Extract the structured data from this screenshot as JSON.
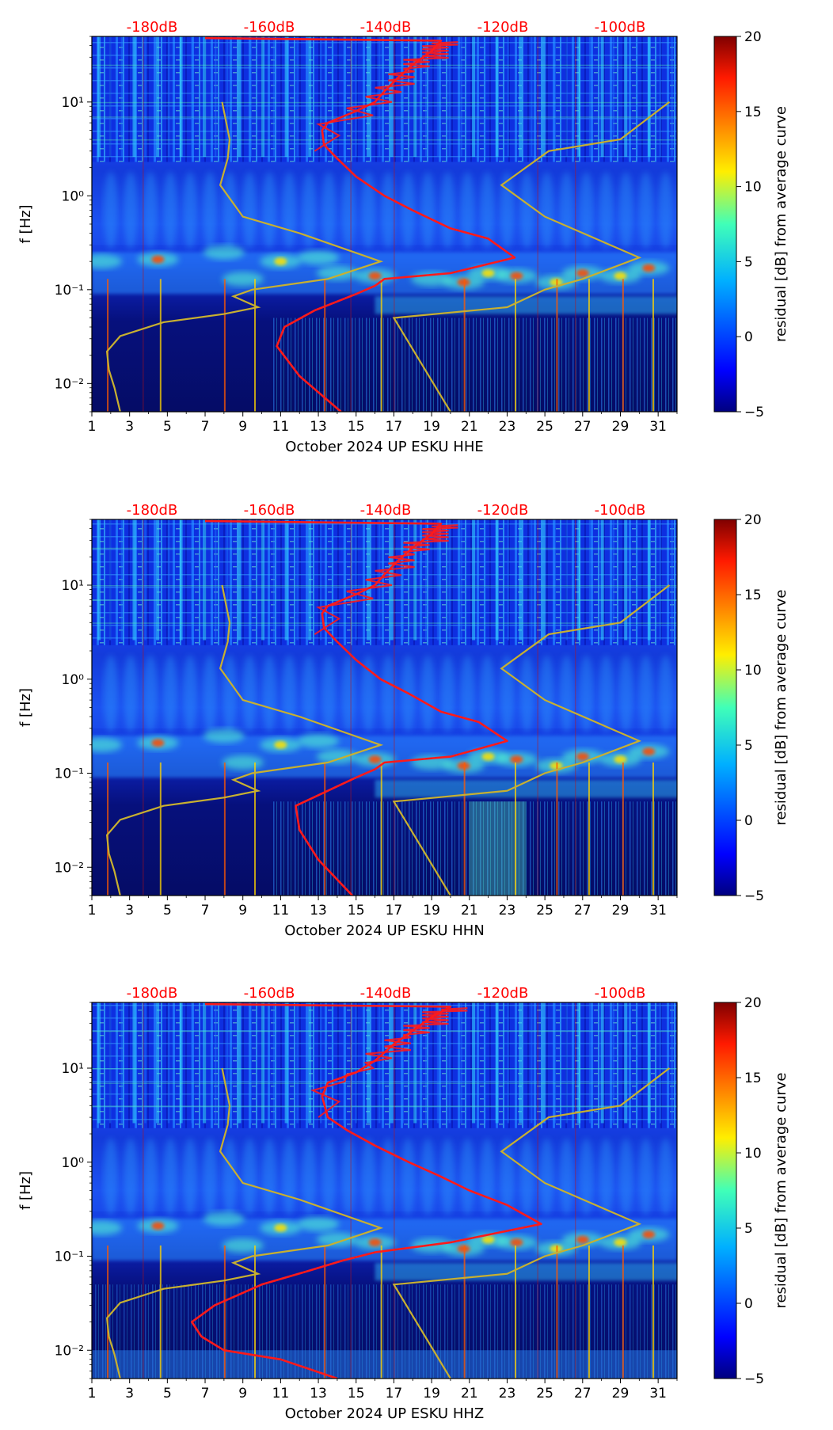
{
  "figure": {
    "colors": {
      "psd_median": "#ff1a1a",
      "noise_model": "#c8b030",
      "db_label": "#ff0000",
      "jet_stops": [
        "#00007f",
        "#0000ff",
        "#007fff",
        "#00ffff",
        "#7fff7f",
        "#ffff00",
        "#ff7f00",
        "#ff0000",
        "#7f0000"
      ]
    },
    "colorbar": {
      "label": "residual [dB] from average curve",
      "ticks": [
        "−5",
        "0",
        "5",
        "10",
        "15",
        "20"
      ],
      "range": [
        -5,
        20
      ]
    }
  },
  "chart_data": [
    {
      "type": "heatmap",
      "title": "October 2024 UP ESKU  HHE",
      "xlabel": "October 2024 UP ESKU  HHE",
      "ylabel": "f [Hz]",
      "x_ticks": [
        "1",
        "3",
        "5",
        "7",
        "9",
        "11",
        "13",
        "15",
        "17",
        "19",
        "21",
        "23",
        "25",
        "27",
        "29",
        "31"
      ],
      "x_range": [
        1,
        32
      ],
      "y_ticks": [
        "10⁻²",
        "10⁻¹",
        "10⁰",
        "10¹"
      ],
      "y_range_hz": [
        0.005,
        50
      ],
      "top_labels": [
        "-180dB",
        "-160dB",
        "-140dB",
        "-120dB",
        "-100dB"
      ],
      "colorbar_ticks": [
        "−5",
        "0",
        "5",
        "10",
        "15",
        "20"
      ],
      "colorbar_label": "residual [dB] from average curve",
      "psd_curve": [
        [
          14.2,
          0.005
        ],
        [
          12,
          0.012
        ],
        [
          10.8,
          0.025
        ],
        [
          11.2,
          0.04
        ],
        [
          12.8,
          0.06
        ],
        [
          15,
          0.09
        ],
        [
          16,
          0.11
        ],
        [
          16.5,
          0.13
        ],
        [
          20,
          0.15
        ],
        [
          23.4,
          0.22
        ],
        [
          22,
          0.35
        ],
        [
          20,
          0.45
        ],
        [
          18,
          0.7
        ],
        [
          16.5,
          1
        ],
        [
          15,
          1.6
        ],
        [
          14,
          2.5
        ],
        [
          13.3,
          3.5
        ],
        [
          13.2,
          5
        ],
        [
          13.5,
          6
        ],
        [
          15,
          8
        ],
        [
          16,
          10
        ],
        [
          16.5,
          13
        ],
        [
          17.2,
          18
        ],
        [
          18,
          25
        ],
        [
          19,
          35
        ],
        [
          19.5,
          45
        ],
        [
          7,
          48
        ]
      ]
    },
    {
      "type": "heatmap",
      "title": "October 2024 UP ESKU  HHN",
      "xlabel": "October 2024 UP ESKU  HHN",
      "ylabel": "f [Hz]",
      "x_ticks": [
        "1",
        "3",
        "5",
        "7",
        "9",
        "11",
        "13",
        "15",
        "17",
        "19",
        "21",
        "23",
        "25",
        "27",
        "29",
        "31"
      ],
      "x_range": [
        1,
        32
      ],
      "y_ticks": [
        "10⁻²",
        "10⁻¹",
        "10⁰",
        "10¹"
      ],
      "y_range_hz": [
        0.005,
        50
      ],
      "top_labels": [
        "-180dB",
        "-160dB",
        "-140dB",
        "-120dB",
        "-100dB"
      ],
      "colorbar_ticks": [
        "−5",
        "0",
        "5",
        "10",
        "15",
        "20"
      ],
      "colorbar_label": "residual [dB] from average curve",
      "psd_curve": [
        [
          14.8,
          0.005
        ],
        [
          13,
          0.012
        ],
        [
          12,
          0.025
        ],
        [
          11.8,
          0.045
        ],
        [
          13.5,
          0.065
        ],
        [
          15,
          0.09
        ],
        [
          16,
          0.11
        ],
        [
          16.5,
          0.13
        ],
        [
          20,
          0.15
        ],
        [
          23,
          0.22
        ],
        [
          21.5,
          0.35
        ],
        [
          19.5,
          0.45
        ],
        [
          17.8,
          0.7
        ],
        [
          16.3,
          1
        ],
        [
          15,
          1.6
        ],
        [
          14,
          2.5
        ],
        [
          13.3,
          3.5
        ],
        [
          13.2,
          5
        ],
        [
          13.5,
          6
        ],
        [
          15,
          8
        ],
        [
          16,
          10
        ],
        [
          16.5,
          13
        ],
        [
          17.2,
          18
        ],
        [
          18,
          25
        ],
        [
          19,
          35
        ],
        [
          19.5,
          45
        ],
        [
          7,
          48
        ]
      ]
    },
    {
      "type": "heatmap",
      "title": "October 2024 UP ESKU  HHZ",
      "xlabel": "October 2024 UP ESKU  HHZ",
      "ylabel": "f [Hz]",
      "x_ticks": [
        "1",
        "3",
        "5",
        "7",
        "9",
        "11",
        "13",
        "15",
        "17",
        "19",
        "21",
        "23",
        "25",
        "27",
        "29",
        "31"
      ],
      "x_range": [
        1,
        32
      ],
      "y_ticks": [
        "10⁻²",
        "10⁻¹",
        "10⁰",
        "10¹"
      ],
      "y_range_hz": [
        0.005,
        50
      ],
      "top_labels": [
        "-180dB",
        "-160dB",
        "-140dB",
        "-120dB",
        "-100dB"
      ],
      "colorbar_ticks": [
        "−5",
        "0",
        "5",
        "10",
        "15",
        "20"
      ],
      "colorbar_label": "residual [dB] from average curve",
      "psd_curve": [
        [
          14,
          0.005
        ],
        [
          11,
          0.008
        ],
        [
          8,
          0.01
        ],
        [
          6.8,
          0.014
        ],
        [
          6.3,
          0.02
        ],
        [
          7.5,
          0.03
        ],
        [
          10,
          0.05
        ],
        [
          12.5,
          0.07
        ],
        [
          14.3,
          0.09
        ],
        [
          16,
          0.11
        ],
        [
          20,
          0.14
        ],
        [
          24.8,
          0.22
        ],
        [
          23,
          0.35
        ],
        [
          21,
          0.5
        ],
        [
          19.5,
          0.7
        ],
        [
          17.8,
          1
        ],
        [
          16,
          1.5
        ],
        [
          14.5,
          2.2
        ],
        [
          13.5,
          3
        ],
        [
          13.2,
          5
        ],
        [
          13.5,
          7
        ],
        [
          15,
          9
        ],
        [
          16,
          12
        ],
        [
          17,
          18
        ],
        [
          18,
          25
        ],
        [
          19,
          35
        ],
        [
          20,
          45
        ],
        [
          7,
          48
        ]
      ]
    }
  ],
  "noise_model_curve": [
    [
      2.5,
      0.005
    ],
    [
      2.2,
      0.009
    ],
    [
      1.9,
      0.014
    ],
    [
      1.8,
      0.022
    ],
    [
      2.5,
      0.032
    ],
    [
      4.8,
      0.045
    ],
    [
      8,
      0.055
    ],
    [
      9.8,
      0.065
    ],
    [
      8.5,
      0.085
    ],
    [
      9.5,
      0.1
    ],
    [
      13.5,
      0.13
    ],
    [
      16.3,
      0.2
    ],
    [
      12,
      0.4
    ],
    [
      9,
      0.6
    ],
    [
      7.8,
      1.3
    ],
    [
      8.2,
      2.5
    ],
    [
      8.3,
      4
    ],
    [
      7.9,
      10
    ]
  ],
  "noise_model_high_curve": [
    [
      20,
      0.005
    ],
    [
      17,
      0.05
    ],
    [
      23,
      0.065
    ],
    [
      25,
      0.1
    ],
    [
      27,
      0.13
    ],
    [
      30,
      0.22
    ],
    [
      25,
      0.6
    ],
    [
      22.7,
      1.3
    ],
    [
      25.2,
      3
    ],
    [
      29,
      4
    ],
    [
      31.6,
      10
    ]
  ]
}
